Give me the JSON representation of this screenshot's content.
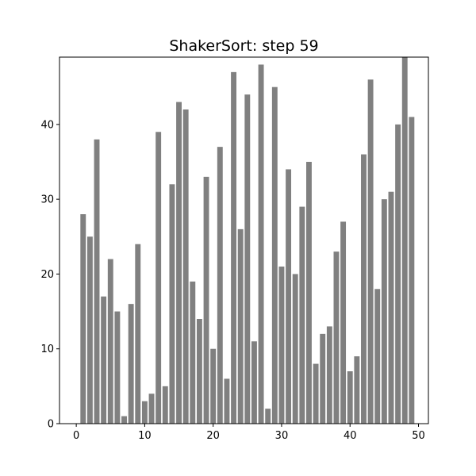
{
  "chart_data": {
    "type": "bar",
    "title": "ShakerSort: step 59",
    "xlabel": "",
    "ylabel": "",
    "x": [
      0,
      1,
      2,
      3,
      4,
      5,
      6,
      7,
      8,
      9,
      10,
      11,
      12,
      13,
      14,
      15,
      16,
      17,
      18,
      19,
      20,
      21,
      22,
      23,
      24,
      25,
      26,
      27,
      28,
      29,
      30,
      31,
      32,
      33,
      34,
      35,
      36,
      37,
      38,
      39,
      40,
      41,
      42,
      43,
      44,
      45,
      46,
      47,
      48,
      49
    ],
    "values": [
      0,
      28,
      25,
      38,
      17,
      22,
      15,
      1,
      16,
      24,
      3,
      4,
      39,
      5,
      32,
      43,
      42,
      19,
      14,
      33,
      10,
      37,
      6,
      47,
      26,
      44,
      11,
      48,
      2,
      45,
      21,
      34,
      20,
      29,
      35,
      8,
      12,
      13,
      23,
      27,
      7,
      9,
      36,
      46,
      18,
      30,
      31,
      40,
      49,
      41
    ],
    "xlim": [
      -2.45,
      51.45
    ],
    "ylim": [
      0,
      49
    ],
    "x_ticks": [
      "0",
      "10",
      "20",
      "30",
      "40",
      "50"
    ],
    "y_ticks": [
      "0",
      "10",
      "20",
      "30",
      "40"
    ],
    "bar_color": "#808080",
    "grid": false
  }
}
